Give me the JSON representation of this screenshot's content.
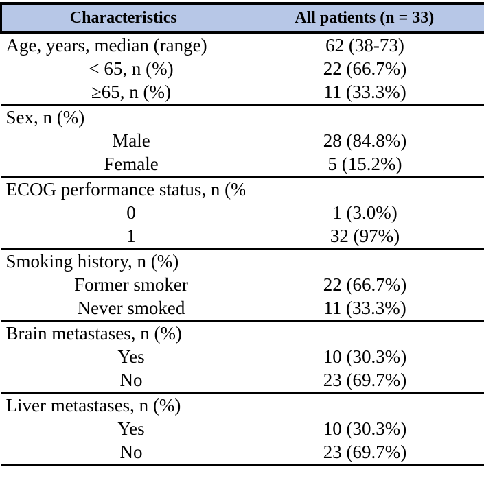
{
  "colors": {
    "header_bg": "#b7c7e7",
    "border": "#000000",
    "text": "#000000",
    "page_bg": "#ffffff"
  },
  "table": {
    "header": {
      "characteristics": "Characteristics",
      "all_patients": "All patients (n = 33)"
    },
    "rows": [
      {
        "label": "Age, years, median (range)",
        "value": "62 (38-73)",
        "type": "category",
        "section_start": false
      },
      {
        "label": "< 65, n (%)",
        "value": "22 (66.7%)",
        "type": "sub",
        "section_start": false
      },
      {
        "label": "≥65, n (%)",
        "value": "11 (33.3%)",
        "type": "sub",
        "section_start": false
      },
      {
        "label": "Sex, n (%)",
        "value": "",
        "type": "category",
        "section_start": true
      },
      {
        "label": "Male",
        "value": "28 (84.8%)",
        "type": "sub",
        "section_start": false
      },
      {
        "label": "Female",
        "value": "5 (15.2%)",
        "type": "sub",
        "section_start": false
      },
      {
        "label": "ECOG performance status, n (%)",
        "value": "",
        "type": "category",
        "section_start": true
      },
      {
        "label": "0",
        "value": "1 (3.0%)",
        "type": "sub",
        "section_start": false
      },
      {
        "label": "1",
        "value": "32 (97%)",
        "type": "sub",
        "section_start": false
      },
      {
        "label": "Smoking history, n (%)",
        "value": "",
        "type": "category",
        "section_start": true
      },
      {
        "label": "Former smoker",
        "value": "22 (66.7%)",
        "type": "sub",
        "section_start": false
      },
      {
        "label": "Never smoked",
        "value": "11 (33.3%)",
        "type": "sub",
        "section_start": false
      },
      {
        "label": "Brain metastases, n (%)",
        "value": "",
        "type": "category",
        "section_start": true
      },
      {
        "label": "Yes",
        "value": "10 (30.3%)",
        "type": "sub",
        "section_start": false
      },
      {
        "label": "No",
        "value": "23 (69.7%)",
        "type": "sub",
        "section_start": false
      },
      {
        "label": "Liver metastases, n (%)",
        "value": "",
        "type": "category",
        "section_start": true
      },
      {
        "label": "Yes",
        "value": "10 (30.3%)",
        "type": "sub",
        "section_start": false
      },
      {
        "label": "No",
        "value": "23 (69.7%)",
        "type": "sub",
        "section_start": false
      }
    ]
  }
}
